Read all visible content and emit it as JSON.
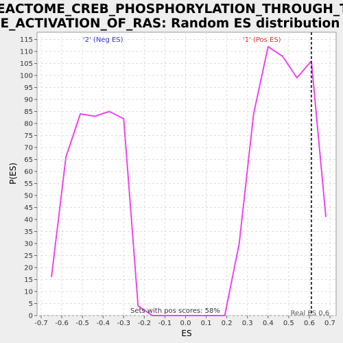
{
  "chart_data": {
    "type": "line",
    "title_lines": [
      "REACTOME_CREB_PHOSPHORYLATION_THROUGH_TH",
      "E_ACTIVATION_OF_RAS: Random ES distribution"
    ],
    "xlabel": "ES",
    "ylabel": "P(ES)",
    "xlim": [
      -0.72,
      0.73
    ],
    "ylim": [
      0,
      118
    ],
    "x_ticks": [
      -0.7,
      -0.6,
      -0.5,
      -0.4,
      -0.3,
      -0.2,
      -0.1,
      0.0,
      0.1,
      0.2,
      0.3,
      0.4,
      0.5,
      0.6,
      0.7
    ],
    "x_tick_labels": [
      "-0.7",
      "-0.6",
      "-0.5",
      "-0.4",
      "-0.3",
      "-0.2",
      "-0.1",
      "0.0",
      "0.1",
      "0.2",
      "0.3",
      "0.4",
      "0.5",
      "0.6",
      "0.7"
    ],
    "y_ticks": [
      0,
      5,
      10,
      15,
      20,
      25,
      30,
      35,
      40,
      45,
      50,
      55,
      60,
      65,
      70,
      75,
      80,
      85,
      90,
      95,
      100,
      105,
      110,
      115
    ],
    "grid": true,
    "series": [
      {
        "color": "#ee44ee",
        "x": [
          -0.65,
          -0.58,
          -0.51,
          -0.44,
          -0.37,
          -0.3,
          -0.23,
          -0.16,
          -0.09,
          -0.02,
          0.05,
          0.12,
          0.19,
          0.26,
          0.33,
          0.4,
          0.47,
          0.54,
          0.61,
          0.68
        ],
        "y": [
          16,
          66,
          84,
          83,
          85,
          82,
          4,
          0,
          0,
          0,
          0,
          0,
          0,
          30,
          84,
          112,
          108,
          99,
          106,
          41
        ]
      }
    ],
    "real_es": 0.61,
    "annotations": {
      "neg_label": "'2' (Neg ES)",
      "pos_label": "'1' (Pos ES)",
      "pos_scores": "Sets with pos scores: 58%",
      "real_es_label": "Real ES 0.6"
    },
    "colors": {
      "line": "#ee44ee",
      "neg": "#3333cc",
      "pos": "#dd3333",
      "grid": "#dddddd"
    }
  }
}
